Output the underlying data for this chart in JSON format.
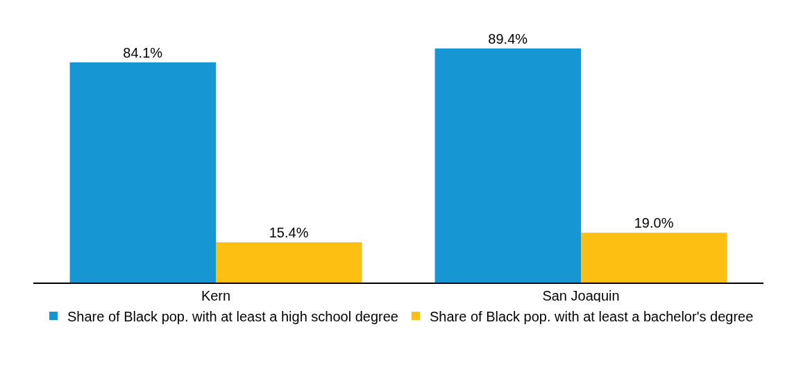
{
  "chart_data": {
    "type": "bar",
    "categories": [
      "Kern",
      "San Joaquin"
    ],
    "series": [
      {
        "name": "Share of Black pop. with at least a high school degree",
        "color": "#1696d2",
        "values": [
          84.1,
          89.4
        ],
        "value_labels": [
          "84.1%",
          "89.4%"
        ]
      },
      {
        "name": "Share of Black pop. with at least a bachelor's degree",
        "color": "#fdbf11",
        "values": [
          15.4,
          19.0
        ],
        "value_labels": [
          "15.4%",
          "19.0%"
        ]
      }
    ],
    "legend": "bottom",
    "grid": false,
    "tick_labels": "x"
  }
}
